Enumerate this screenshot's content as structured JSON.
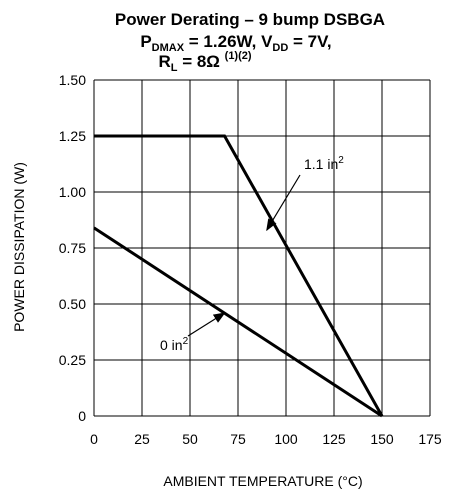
{
  "chart_data": {
    "type": "line",
    "title": {
      "line1": "Power Derating – 9 bump DSBGA",
      "line2": {
        "p": "P",
        "sub": "DMAX",
        "a": " = 1.26W, V",
        "sub2": "DD",
        "b": " = 7V,"
      },
      "line3": {
        "r": "R",
        "sub": "L",
        "a": " = 8Ω ",
        "sup": "(1)(2)"
      }
    },
    "xlabel": "AMBIENT TEMPERATURE (°C)",
    "ylabel": "POWER DISSIPATION (W)",
    "xlim": [
      0,
      175
    ],
    "ylim": [
      0,
      1.5
    ],
    "x_ticks": [
      0,
      25,
      50,
      75,
      100,
      125,
      150,
      175
    ],
    "y_ticks": [
      "0",
      "0.25",
      "0.50",
      "0.75",
      "1.00",
      "1.25",
      "1.50"
    ],
    "grid": true,
    "series": [
      {
        "name": "1.1 in²",
        "points": [
          [
            0,
            1.25
          ],
          [
            68,
            1.25
          ],
          [
            150,
            0
          ]
        ]
      },
      {
        "name": "0 in²",
        "points": [
          [
            0,
            0.84
          ],
          [
            150,
            0
          ]
        ]
      }
    ],
    "annotations": [
      {
        "text": "1.1 in",
        "sup": "2",
        "arrow_to": [
          90,
          0.83
        ]
      },
      {
        "text": "0 in",
        "sup": "2",
        "arrow_to": [
          68,
          0.46
        ]
      }
    ]
  }
}
